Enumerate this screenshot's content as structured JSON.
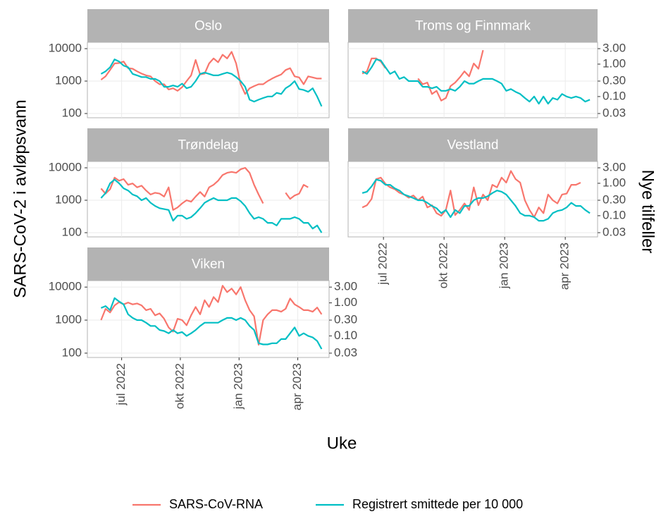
{
  "chart_data": {
    "type": "line",
    "x_label": "Uke",
    "y_label": "SARS-CoV-2 i avløpsvann",
    "y2_label": "Nye tilfeller",
    "log_scale": true,
    "grid": true,
    "legend_position": "bottom",
    "xlim": [
      5.25,
      17.6
    ],
    "xticks": [
      {
        "value": 7,
        "label": "jul 2022"
      },
      {
        "value": 10,
        "label": "okt 2022"
      },
      {
        "value": 13,
        "label": "jan 2023"
      },
      {
        "value": 16,
        "label": "apr 2023"
      }
    ],
    "ylim": [
      74,
      15700
    ],
    "yticks": [
      100,
      1000,
      10000
    ],
    "y2lim": [
      0.0222,
      4.71
    ],
    "y2ticks": [
      {
        "value": 0.03,
        "label": "0.03"
      },
      {
        "value": 0.1,
        "label": "0.10"
      },
      {
        "value": 0.3,
        "label": "0.30"
      },
      {
        "value": 1,
        "label": "1.00"
      },
      {
        "value": 3,
        "label": "3.00"
      }
    ],
    "x": [
      5.95,
      6.18,
      6.41,
      6.64,
      6.87,
      7.1,
      7.33,
      7.56,
      7.79,
      8.02,
      8.25,
      8.48,
      8.71,
      8.94,
      9.17,
      9.4,
      9.63,
      9.86,
      10.09,
      10.32,
      10.55,
      10.78,
      11.01,
      11.24,
      11.47,
      11.7,
      11.93,
      12.16,
      12.39,
      12.62,
      12.85,
      13.08,
      13.31,
      13.54,
      13.77,
      14.0,
      14.23,
      14.46,
      14.69,
      14.92,
      15.15,
      15.38,
      15.61,
      15.84,
      16.07,
      16.3,
      16.53,
      16.76,
      16.99,
      17.22
    ],
    "series": [
      {
        "name": "SARS-CoV-RNA",
        "color": "#f8766d"
      },
      {
        "name": "Registrert smittede per 10 000",
        "color": "#00bfc4",
        "axis": "y2"
      }
    ],
    "facets": [
      {
        "title": "Oslo",
        "series": [
          {
            "values": [
              1100,
              1400,
              2200,
              3500,
              3600,
              4000,
              2500,
              2400,
              2000,
              1700,
              1500,
              1400,
              1000,
              800,
              800,
              550,
              600,
              500,
              650,
              1000,
              1500,
              4500,
              1600,
              1700,
              3500,
              5000,
              3800,
              6500,
              5000,
              8000,
              3500,
              800,
              400,
              600,
              700,
              800,
              800,
              1000,
              1200,
              1400,
              1600,
              2200,
              2500,
              1400,
              1300,
              800,
              1400,
              1300,
              1200,
              1200
            ]
          },
          {
            "values": [
              0.5,
              0.6,
              0.8,
              1.4,
              1.2,
              0.9,
              0.8,
              0.5,
              0.45,
              0.4,
              0.4,
              0.35,
              0.35,
              0.3,
              0.2,
              0.2,
              0.22,
              0.2,
              0.25,
              0.18,
              0.2,
              0.3,
              0.5,
              0.55,
              0.5,
              0.45,
              0.45,
              0.5,
              0.55,
              0.5,
              0.4,
              0.3,
              0.2,
              0.08,
              0.07,
              0.08,
              0.09,
              0.1,
              0.1,
              0.13,
              0.12,
              0.18,
              0.22,
              0.3,
              0.17,
              0.16,
              0.14,
              0.18,
              0.1,
              0.05
            ]
          }
        ]
      },
      {
        "title": "Troms og Finnmark",
        "series": [
          {
            "values": [
              1700,
              2000,
              5000,
              5000,
              4000,
              2500,
              null,
              null,
              null,
              null,
              null,
              null,
              1200,
              800,
              900,
              400,
              500,
              250,
              300,
              700,
              900,
              1300,
              2000,
              1400,
              3500,
              2400,
              9000,
              null,
              null,
              null,
              null,
              null,
              null,
              null,
              null,
              null,
              null,
              null,
              null,
              null,
              null,
              null,
              null,
              null,
              null,
              null,
              null,
              null,
              null,
              null
            ]
          },
          {
            "values": [
              0.6,
              0.5,
              0.8,
              1.4,
              1.3,
              0.8,
              0.5,
              0.6,
              0.35,
              0.4,
              0.3,
              0.3,
              0.3,
              0.2,
              0.2,
              0.18,
              0.2,
              0.15,
              0.15,
              0.17,
              0.15,
              0.2,
              0.3,
              0.25,
              0.25,
              0.3,
              0.35,
              0.35,
              0.35,
              0.3,
              0.25,
              0.15,
              0.17,
              0.14,
              0.12,
              0.09,
              0.07,
              0.1,
              0.06,
              0.1,
              0.06,
              0.09,
              0.08,
              0.12,
              0.1,
              0.09,
              0.1,
              0.09,
              0.07,
              0.08
            ]
          }
        ]
      },
      {
        "title": "Trøndelag",
        "series": [
          {
            "values": [
              2300,
              1600,
              2200,
              5000,
              4000,
              4500,
              3000,
              3300,
              2500,
              2800,
              2000,
              1500,
              1700,
              1600,
              1300,
              2500,
              500,
              600,
              800,
              1000,
              900,
              1300,
              1800,
              1300,
              2500,
              3000,
              4000,
              6000,
              7000,
              7500,
              7000,
              9000,
              10000,
              7000,
              3000,
              1500,
              800,
              null,
              null,
              null,
              null,
              1700,
              1100,
              1400,
              1600,
              3000,
              2500,
              null,
              null,
              null
            ]
          },
          {
            "values": [
              0.35,
              0.5,
              1.0,
              1.3,
              1.0,
              0.7,
              0.6,
              0.45,
              0.4,
              0.3,
              0.35,
              0.25,
              0.2,
              0.17,
              0.16,
              0.15,
              0.07,
              0.1,
              0.1,
              0.08,
              0.09,
              0.12,
              0.17,
              0.25,
              0.3,
              0.35,
              0.3,
              0.3,
              0.3,
              0.35,
              0.35,
              0.28,
              0.2,
              0.12,
              0.08,
              0.09,
              0.08,
              0.06,
              0.06,
              0.05,
              0.08,
              0.08,
              0.08,
              0.09,
              0.08,
              0.06,
              0.06,
              0.04,
              0.05,
              0.03
            ]
          }
        ]
      },
      {
        "title": "Vestland",
        "series": [
          {
            "values": [
              600,
              700,
              1100,
              4500,
              5000,
              3200,
              2500,
              2200,
              1700,
              1500,
              1200,
              1400,
              1000,
              1300,
              600,
              700,
              400,
              330,
              500,
              2000,
              350,
              500,
              800,
              500,
              2500,
              700,
              1500,
              1000,
              3000,
              2500,
              5000,
              3500,
              8000,
              4500,
              3500,
              1000,
              500,
              300,
              600,
              400,
              1500,
              1000,
              800,
              1500,
              1600,
              3000,
              3000,
              3500,
              null,
              null
            ]
          },
          {
            "values": [
              0.5,
              0.55,
              0.8,
              1.3,
              1.2,
              0.9,
              0.9,
              0.7,
              0.6,
              0.45,
              0.4,
              0.35,
              0.3,
              0.3,
              0.25,
              0.2,
              0.17,
              0.12,
              0.15,
              0.09,
              0.15,
              0.12,
              0.2,
              0.2,
              0.3,
              0.35,
              0.35,
              0.4,
              0.5,
              0.6,
              0.55,
              0.45,
              0.3,
              0.2,
              0.12,
              0.1,
              0.1,
              0.09,
              0.07,
              0.07,
              0.08,
              0.12,
              0.14,
              0.15,
              0.18,
              0.25,
              0.2,
              0.2,
              0.15,
              0.12
            ]
          }
        ]
      },
      {
        "title": "Viken",
        "series": [
          {
            "values": [
              1000,
              2200,
              1700,
              2800,
              3500,
              3000,
              3400,
              3000,
              3200,
              2800,
              2000,
              2200,
              1400,
              1600,
              1100,
              600,
              450,
              1100,
              1000,
              700,
              1400,
              2500,
              1500,
              4000,
              2500,
              5000,
              3500,
              11000,
              7000,
              9000,
              6000,
              10000,
              4000,
              2000,
              1300,
              180,
              1000,
              1500,
              2000,
              2000,
              1800,
              2200,
              4500,
              3000,
              2500,
              2000,
              2000,
              1800,
              2400,
              1500
            ]
          },
          {
            "values": [
              0.7,
              0.8,
              0.6,
              1.4,
              1.1,
              0.9,
              0.45,
              0.35,
              0.3,
              0.3,
              0.25,
              0.2,
              0.2,
              0.15,
              0.14,
              0.12,
              0.15,
              0.12,
              0.13,
              0.1,
              0.12,
              0.15,
              0.2,
              0.25,
              0.25,
              0.25,
              0.25,
              0.3,
              0.35,
              0.35,
              0.3,
              0.35,
              0.3,
              0.2,
              0.15,
              0.06,
              0.055,
              0.055,
              0.06,
              0.06,
              0.08,
              0.08,
              0.12,
              0.18,
              0.1,
              0.12,
              0.1,
              0.09,
              0.07,
              0.04
            ]
          }
        ]
      }
    ]
  }
}
